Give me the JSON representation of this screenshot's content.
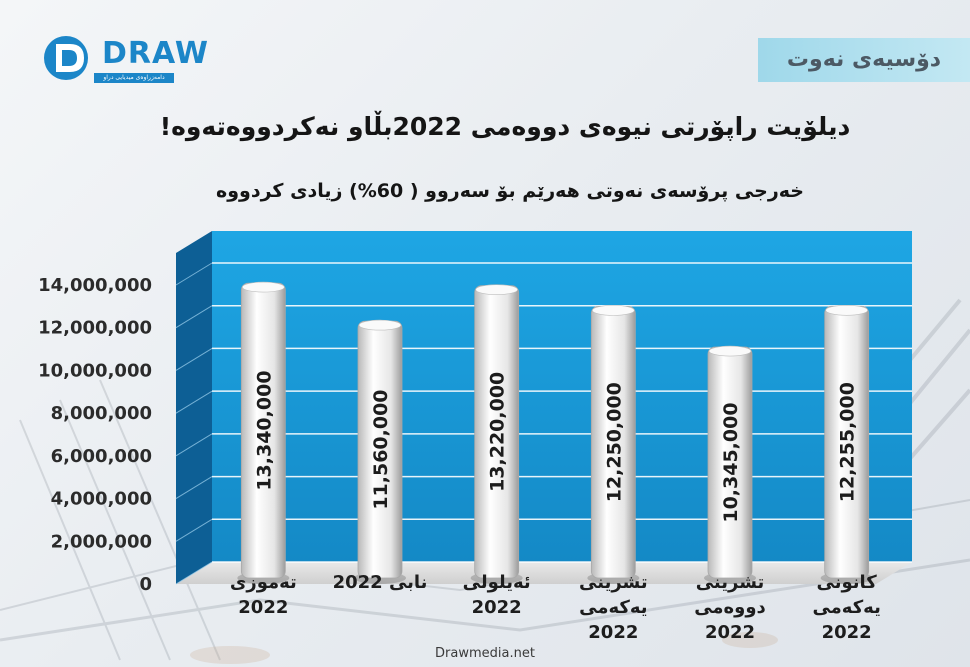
{
  "brand": {
    "logo_text": "DRAW",
    "logo_subtext": "دامەزراوەی میدیایی دراو"
  },
  "section_label": "دۆسیەی نەوت",
  "footer": "Drawmedia.net",
  "chart_data": {
    "type": "bar",
    "title": "دیلۆیت راپۆرتی نیوەی دووەمی  2022بڵاو نەکردووەتەوە!",
    "subtitle": "خەرجی پرۆسەی نەوتی هەرێم بۆ سەروو ( 60%) زیادی کردووە",
    "categories": [
      "تەموزی\n2022",
      "نابی 2022",
      "ئەیلولی\n2022",
      "تشرینی\nیەکەمی\n2022",
      "تشرینی\nدووەمی\n2022",
      "کانونی\nیەکەمی\n2022"
    ],
    "values": [
      13340000,
      11560000,
      13220000,
      12250000,
      10345000,
      12255000
    ],
    "value_labels": [
      "13,340,000",
      "11,560,000",
      "13,220,000",
      "12,250,000",
      "10,345,000",
      "12,255,000"
    ],
    "yticks": [
      0,
      2000000,
      4000000,
      6000000,
      8000000,
      10000000,
      12000000,
      14000000
    ],
    "ytick_labels": [
      "0",
      "2,000,000",
      "4,000,000",
      "6,000,000",
      "8,000,000",
      "10,000,000",
      "12,000,000",
      "14,000,000"
    ],
    "ylim": [
      0,
      14000000
    ],
    "xlabel": "",
    "ylabel": "",
    "grid": true,
    "colors": {
      "plot_bg": "#1a9ad8",
      "plot_side": "#0d5f95",
      "bar": "#f2f2f2",
      "grid": "#ffffff"
    }
  }
}
